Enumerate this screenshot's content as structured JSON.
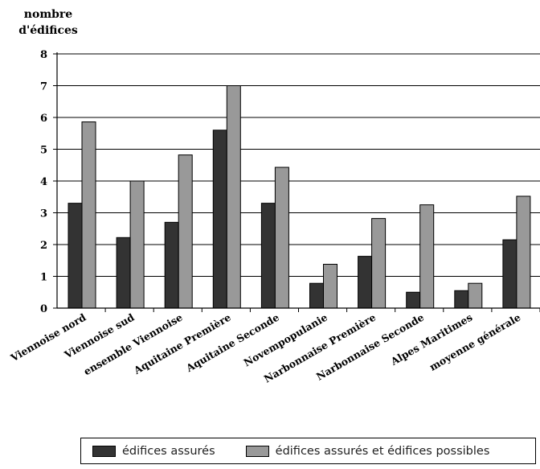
{
  "chart_data": {
    "type": "bar",
    "ylabel_line1": "nombre",
    "ylabel_line2": "d'édifices",
    "xlabel": "",
    "ylim": [
      0,
      8
    ],
    "yticks": [
      0,
      1,
      2,
      3,
      4,
      5,
      6,
      7,
      8
    ],
    "grid": true,
    "legend_position": "bottom",
    "categories": [
      "Viennoise nord",
      "Viennoise sud",
      "ensemble Viennoise",
      "Aquitaine Première",
      "Aquitaine Seconde",
      "Novempopulanie",
      "Narbonnaise Première",
      "Narbonnaise Seconde",
      "Alpes Maritimes",
      "moyenne générale"
    ],
    "series": [
      {
        "name": "édifices assurés",
        "color": "#333333",
        "values": [
          3.3,
          2.22,
          2.7,
          5.6,
          3.3,
          0.78,
          1.63,
          0.5,
          0.55,
          2.15
        ]
      },
      {
        "name": "édifices assurés et édifices possibles",
        "color": "#999999",
        "values": [
          5.86,
          4.0,
          4.82,
          7.0,
          4.43,
          1.38,
          2.82,
          3.25,
          0.78,
          3.52
        ]
      }
    ]
  }
}
